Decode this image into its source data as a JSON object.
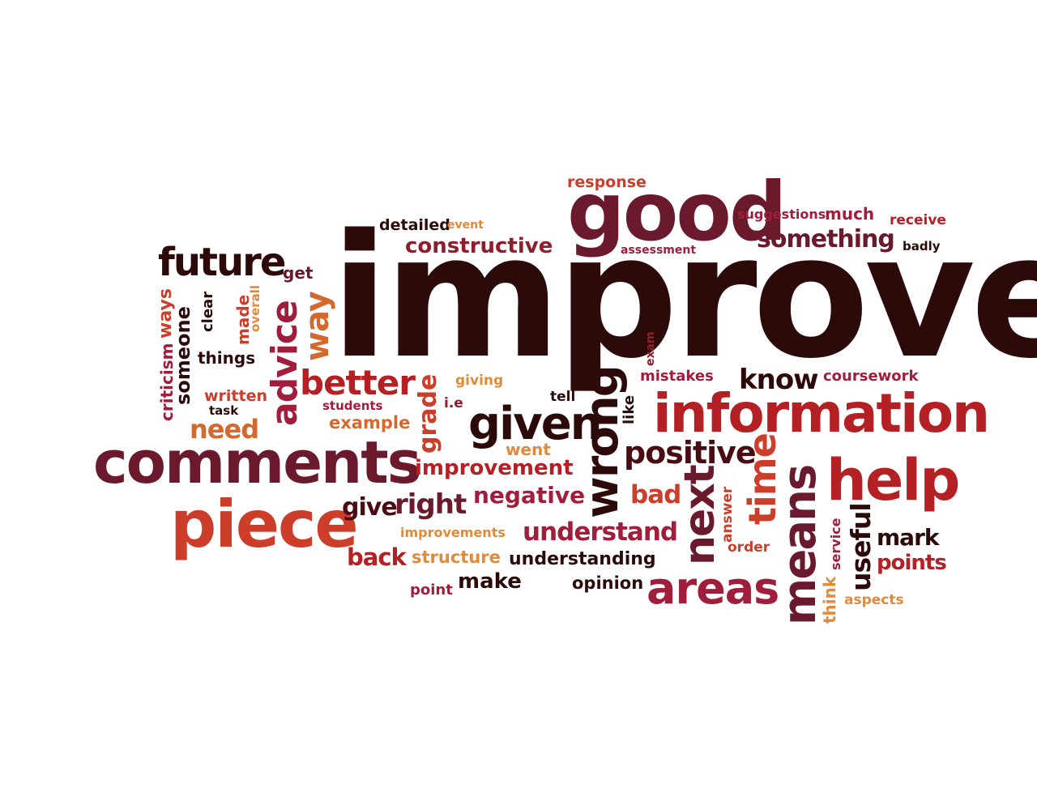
{
  "words": {
    "improve": "improve",
    "good": "good",
    "comments": "comments",
    "information": "information",
    "piece": "piece",
    "help": "help",
    "means": "means",
    "given": "given",
    "wrong": "wrong",
    "areas": "areas",
    "advice": "advice",
    "future": "future",
    "better": "better",
    "positive": "positive",
    "next": "next",
    "time": "time",
    "something": "something",
    "constructive": "constructive",
    "improvement": "improvement",
    "understand": "understand",
    "negative": "negative",
    "right": "right",
    "give": "give",
    "way": "way",
    "know": "know",
    "grade": "grade",
    "need": "need",
    "back": "back",
    "make": "make",
    "bad": "bad",
    "useful": "useful",
    "mark": "mark",
    "points": "points",
    "structure": "structure",
    "understanding": "understanding",
    "opinion": "opinion",
    "response": "response",
    "detailed": "detailed",
    "event": "event",
    "assessment": "assessment",
    "suggestions": "suggestions",
    "much": "much",
    "receive": "receive",
    "badly": "badly",
    "get": "get",
    "ways": "ways",
    "someone": "someone",
    "clear": "clear",
    "made": "made",
    "overall": "overall",
    "things": "things",
    "criticism": "criticism",
    "written": "written",
    "task": "task",
    "students": "students",
    "example": "example",
    "ie": "i.e",
    "giving": "giving",
    "tell": "tell",
    "like": "like",
    "exam": "exam",
    "mistakes": "mistakes",
    "coursework": "coursework",
    "went": "went",
    "improvements": "improvements",
    "point": "point",
    "answer": "answer",
    "order": "order",
    "service": "service",
    "think": "think",
    "aspects": "aspects"
  },
  "colors": {
    "darkest": "#2d0a0a",
    "plum": "#6a1a2c",
    "maroon": "#8f1d2b",
    "red": "#b52025",
    "brick": "#cc3d2a",
    "orange": "#d4692b",
    "amber": "#e08a3a",
    "crimson": "#a01e3c",
    "wine": "#4a0c12"
  }
}
